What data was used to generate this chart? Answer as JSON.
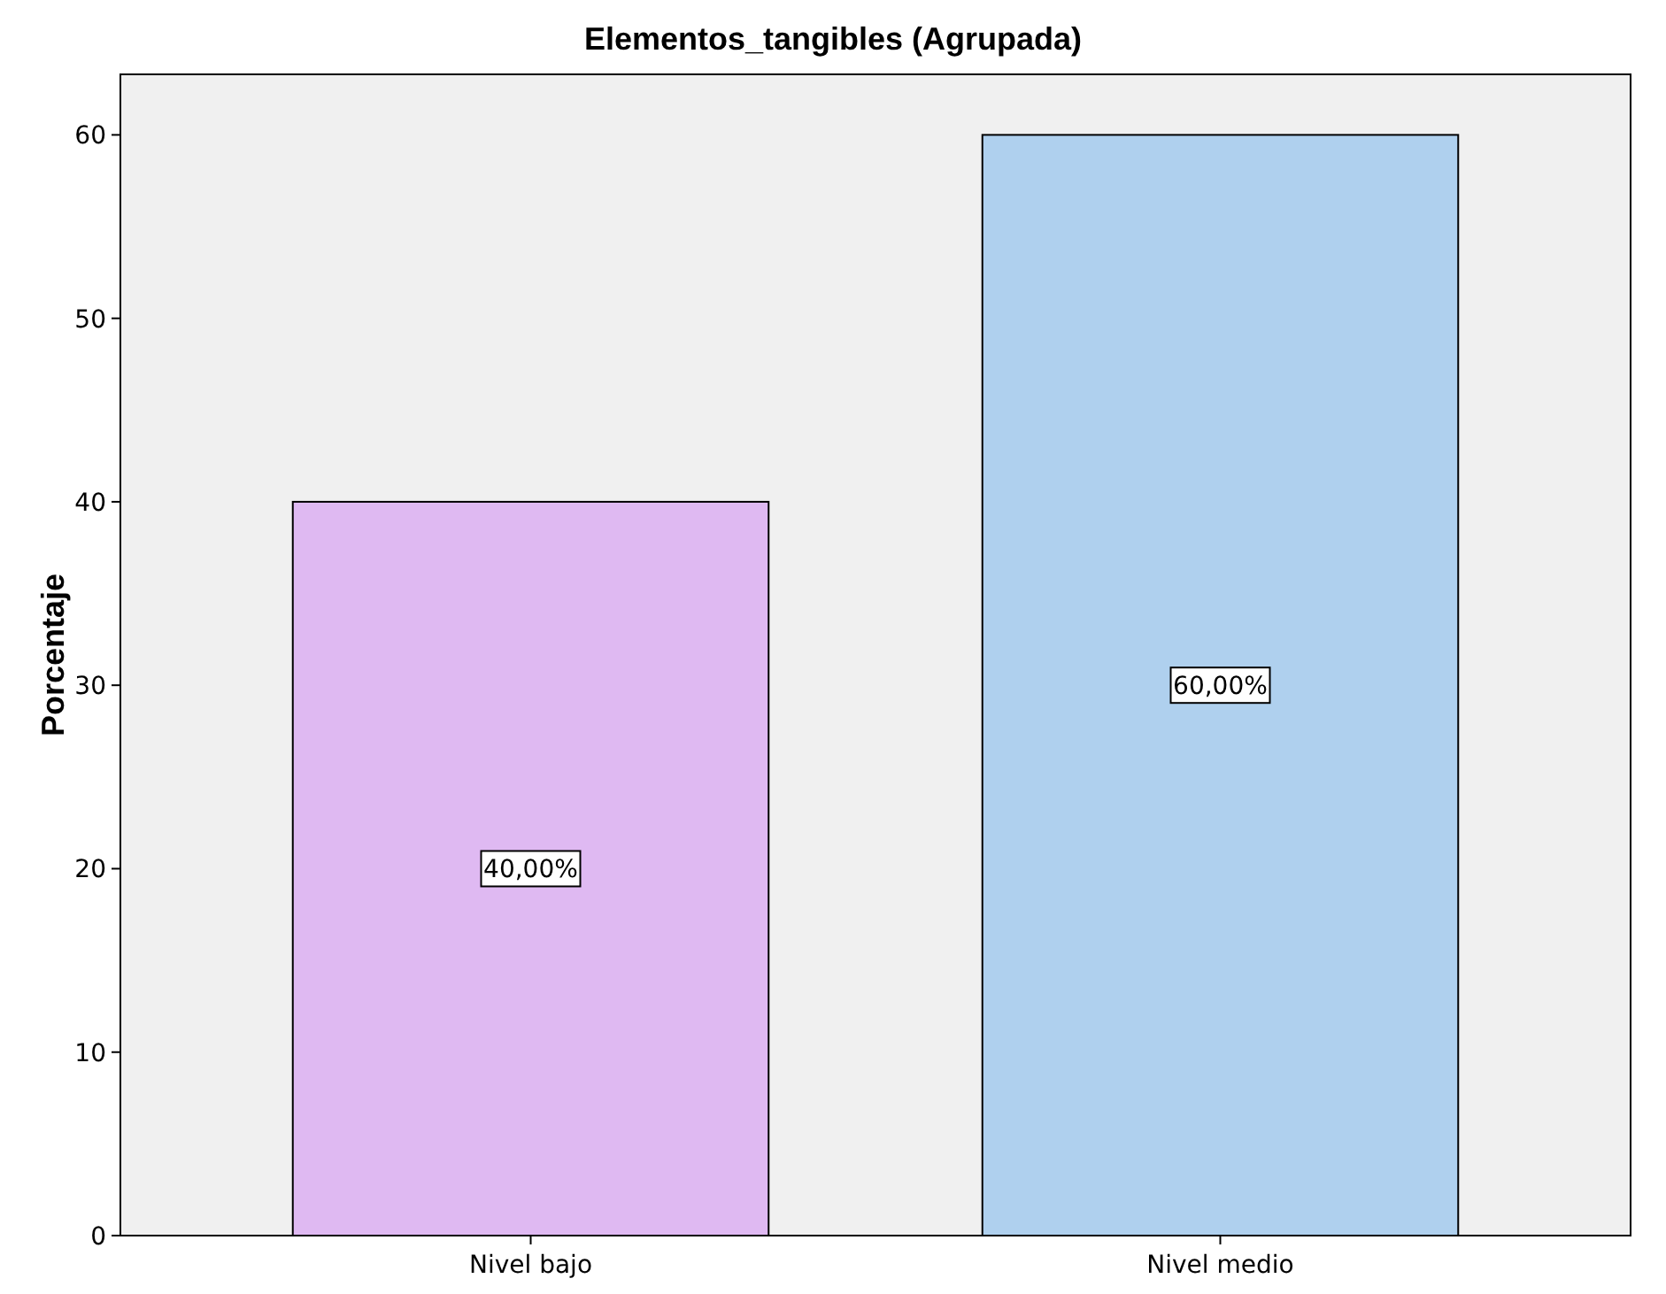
{
  "chart_data": {
    "type": "bar",
    "title": "Elementos_tangibles (Agrupada)",
    "ylabel": "Porcentaje",
    "categories": [
      "Nivel bajo",
      "Nivel medio"
    ],
    "values": [
      40,
      60
    ],
    "colors": [
      "#dfb9f2",
      "#afd0ee"
    ],
    "value_labels": [
      "40,00%",
      "60,00%"
    ],
    "ylim": [
      0,
      63.3
    ],
    "yticks": [
      0,
      10,
      20,
      30,
      40,
      50,
      60
    ],
    "grid": false
  }
}
